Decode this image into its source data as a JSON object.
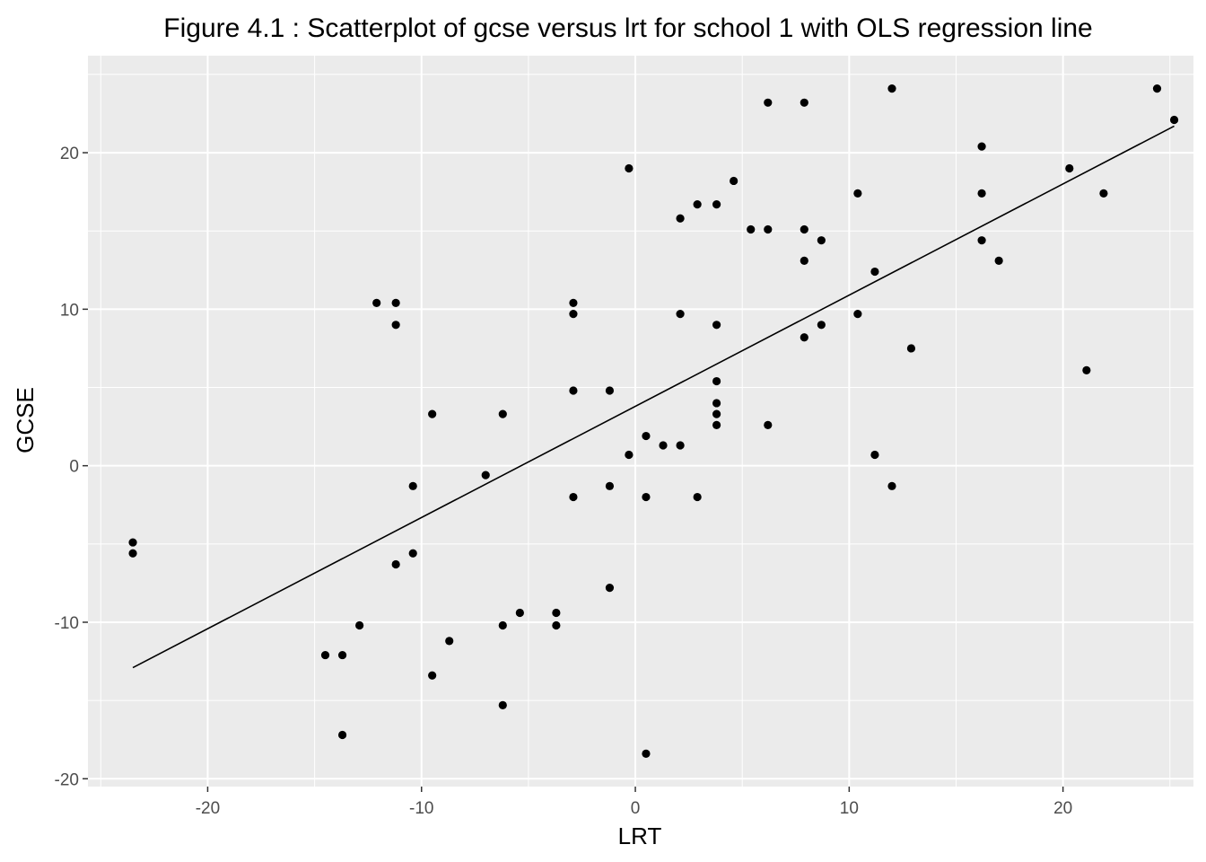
{
  "chart_data": {
    "type": "scatter",
    "title": "Figure 4.1 : Scatterplot of gcse versus lrt for school 1 with OLS regression line",
    "xlabel": "LRT",
    "ylabel": "GCSE",
    "xlim": [
      -25.6,
      26.1
    ],
    "ylim": [
      -20.5,
      26.2
    ],
    "xticks": [
      -20,
      -10,
      0,
      10,
      20
    ],
    "yticks": [
      -20,
      -10,
      0,
      10,
      20
    ],
    "xtick_labels": [
      "-20",
      "-10",
      "0",
      "10",
      "20"
    ],
    "ytick_labels": [
      "-20",
      "-10",
      "0",
      "10",
      "20"
    ],
    "grid": true,
    "colors": {
      "panel": "#ebebeb",
      "grid": "#ffffff",
      "point": "#000000",
      "line": "#000000"
    },
    "series": [
      {
        "x": [
          -23.5,
          -23.5,
          -14.5,
          -13.7,
          -13.7,
          -12.9,
          -12.1,
          -11.2,
          -11.2,
          -11.2,
          -10.4,
          -10.4,
          -9.5,
          -9.5,
          -8.7,
          -7.0,
          -6.2,
          -6.2,
          -6.2,
          -5.4,
          -3.7,
          -3.7,
          -2.9,
          -2.9,
          -2.9,
          -2.9,
          -1.2,
          -1.2,
          -1.2,
          -0.3,
          -0.3,
          0.5,
          0.5,
          0.5,
          1.3,
          2.1,
          2.1,
          2.1,
          2.9,
          2.9,
          3.8,
          3.8,
          3.8,
          3.8,
          3.8,
          3.8,
          4.6,
          5.4,
          6.2,
          6.2,
          6.2,
          7.9,
          7.9,
          7.9,
          7.9,
          8.7,
          8.7,
          10.4,
          10.4,
          11.2,
          11.2,
          12.0,
          12.0,
          12.9,
          16.2,
          16.2,
          16.2,
          17.0,
          20.3,
          21.1,
          21.9,
          24.4,
          25.2
        ],
        "y": [
          -4.9,
          -5.6,
          -12.1,
          -12.1,
          -17.2,
          -10.2,
          10.4,
          10.4,
          9.0,
          -6.3,
          -1.3,
          -5.6,
          3.3,
          -13.4,
          -11.2,
          -0.6,
          3.3,
          -10.2,
          -15.3,
          -9.4,
          -9.4,
          -10.2,
          10.4,
          9.7,
          4.8,
          -2.0,
          4.8,
          -1.3,
          -7.8,
          19.0,
          0.7,
          -18.4,
          1.9,
          -2.0,
          1.3,
          15.8,
          9.7,
          1.3,
          16.7,
          -2.0,
          16.7,
          9.0,
          5.4,
          4.0,
          3.3,
          2.6,
          18.2,
          15.1,
          23.2,
          15.1,
          2.6,
          23.2,
          15.1,
          13.1,
          8.2,
          14.4,
          9.0,
          17.4,
          9.7,
          12.4,
          0.7,
          24.1,
          -1.3,
          7.5,
          20.4,
          17.4,
          14.4,
          13.1,
          19.0,
          6.1,
          17.4,
          24.1,
          22.1
        ]
      }
    ],
    "regression_line": {
      "x": [
        -23.5,
        25.2
      ],
      "y": [
        -12.9,
        21.7
      ]
    }
  }
}
